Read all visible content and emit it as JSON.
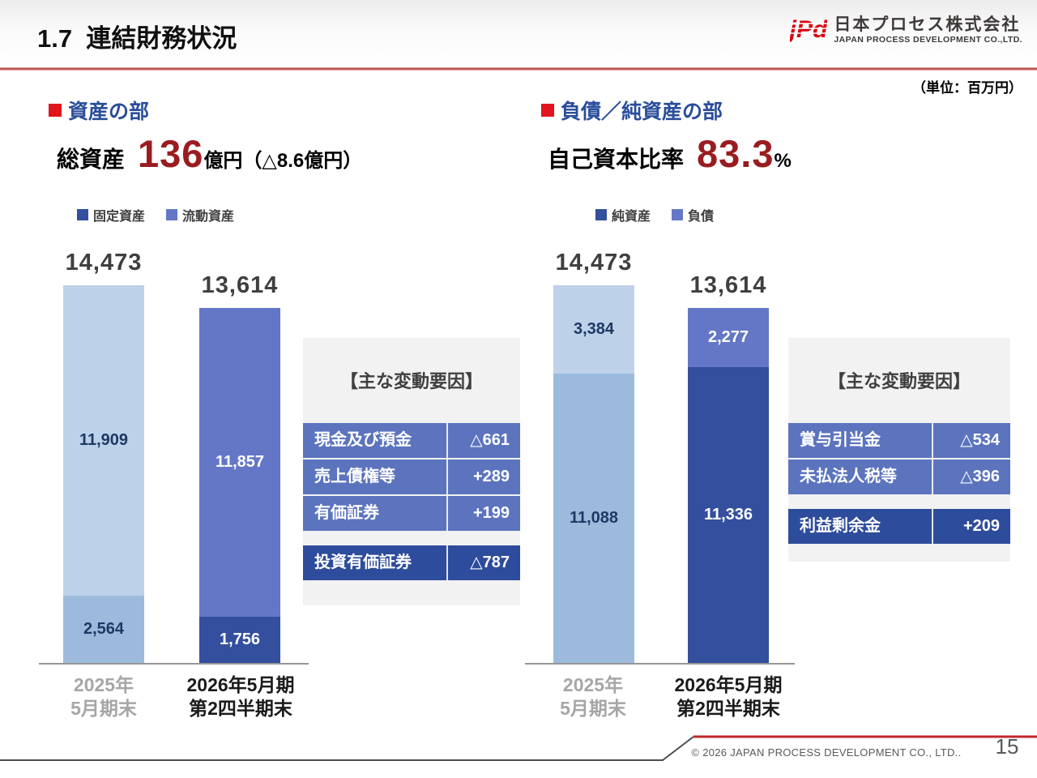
{
  "header": {
    "title": "1.7  連結財務状況",
    "logo_mark": "jPd",
    "logo_jp": "日本プロセス株式会社",
    "logo_en": "JAPAN PROCESS DEVELOPMENT CO.,LTD."
  },
  "unit_note": "（単位：百万円）",
  "colors": {
    "accent_red": "#e1151b",
    "number_red": "#9a1c20",
    "heading_blue": "#2a4d9b",
    "series_dark": "#334f9d",
    "series_mid": "#6377c6",
    "prev_dark": "#9cbbdc",
    "prev_light": "#bdd2e9",
    "label_navy": "#1f3864",
    "total_gray": "#3f3f3f",
    "axis_label_gray": "#a6a6a6",
    "cat_label_black": "#1a1a1a",
    "table_row_blue": "#5c74be",
    "table_row_dark": "#2e4c9c",
    "panel_gray": "#f2f2f2"
  },
  "assets": {
    "heading": "資産の部",
    "stat": {
      "label": "総資産",
      "value": "136",
      "unit": "億円",
      "change": "（△8.6億円）"
    },
    "factors": {
      "title": "【主な変動要因】",
      "rows": [
        {
          "label": "現金及び預金",
          "value": "△661"
        },
        {
          "label": "売上債権等",
          "value": "+289"
        },
        {
          "label": "有価証券",
          "value": "+199"
        }
      ],
      "highlight_rows": [
        {
          "label": "投資有価証券",
          "value": "△787"
        }
      ]
    }
  },
  "liabilities": {
    "heading": "負債／純資産の部",
    "stat": {
      "label": "自己資本比率",
      "value": "83.3",
      "unit": "%"
    },
    "factors": {
      "title": "【主な変動要因】",
      "rows": [
        {
          "label": "賞与引当金",
          "value": "△534"
        },
        {
          "label": "未払法人税等",
          "value": "△396"
        }
      ],
      "highlight_rows": [
        {
          "label": "利益剰余金",
          "value": "+209"
        }
      ]
    }
  },
  "chart_data": [
    {
      "type": "bar",
      "stacked": true,
      "title": "資産の部",
      "unit": "百万円",
      "categories": [
        [
          "2025年",
          "5月期末"
        ],
        [
          "2026年5月期",
          "第2四半期末"
        ]
      ],
      "series": [
        {
          "name": "固定資産",
          "values": [
            2564,
            1756
          ]
        },
        {
          "name": "流動資産",
          "values": [
            11909,
            11857
          ]
        }
      ],
      "totals": [
        14473,
        13614
      ],
      "legend_position": "top",
      "grid": false
    },
    {
      "type": "bar",
      "stacked": true,
      "title": "負債／純資産の部",
      "unit": "百万円",
      "categories": [
        [
          "2025年",
          "5月期末"
        ],
        [
          "2026年5月期",
          "第2四半期末"
        ]
      ],
      "series": [
        {
          "name": "純資産",
          "values": [
            11088,
            11336
          ]
        },
        {
          "name": "負債",
          "values": [
            3384,
            2277
          ]
        }
      ],
      "totals": [
        14473,
        13614
      ],
      "legend_position": "top",
      "grid": false
    }
  ],
  "footer": {
    "copyright": "© 2026 JAPAN PROCESS DEVELOPMENT CO., LTD..",
    "page": "15"
  }
}
